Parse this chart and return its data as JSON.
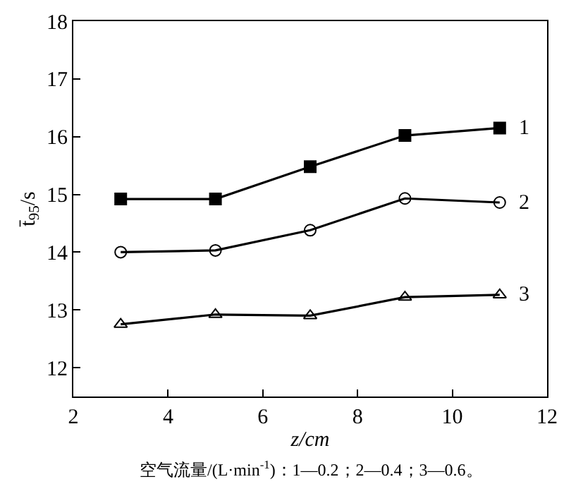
{
  "chart_data": {
    "type": "line",
    "xlabel": "z/cm",
    "ylabel": "t̄$_{95}$/s",
    "x": [
      3,
      5,
      7,
      9,
      11
    ],
    "series": [
      {
        "name": "1",
        "color": "#000000",
        "marker": "square",
        "values": [
          14.92,
          14.92,
          15.48,
          16.02,
          16.15
        ]
      },
      {
        "name": "2",
        "color": "#000000",
        "marker": "circle",
        "values": [
          14.0,
          14.03,
          14.38,
          14.93,
          14.86
        ]
      },
      {
        "name": "3",
        "color": "#000000",
        "marker": "triangle",
        "values": [
          12.75,
          12.92,
          12.9,
          13.22,
          13.26
        ]
      }
    ],
    "xlim": [
      2,
      12
    ],
    "xticks": [
      2,
      4,
      6,
      8,
      10,
      12
    ],
    "ylim": [
      11.5,
      18
    ],
    "yticks": [
      12,
      13,
      14,
      15,
      16,
      17,
      18
    ],
    "grid": false,
    "legend": false,
    "line_style": "solid",
    "annotations": [
      "空气流量/(L·min$^{-1}$)：1—0.2；2—0.4；3—0.6。"
    ]
  }
}
